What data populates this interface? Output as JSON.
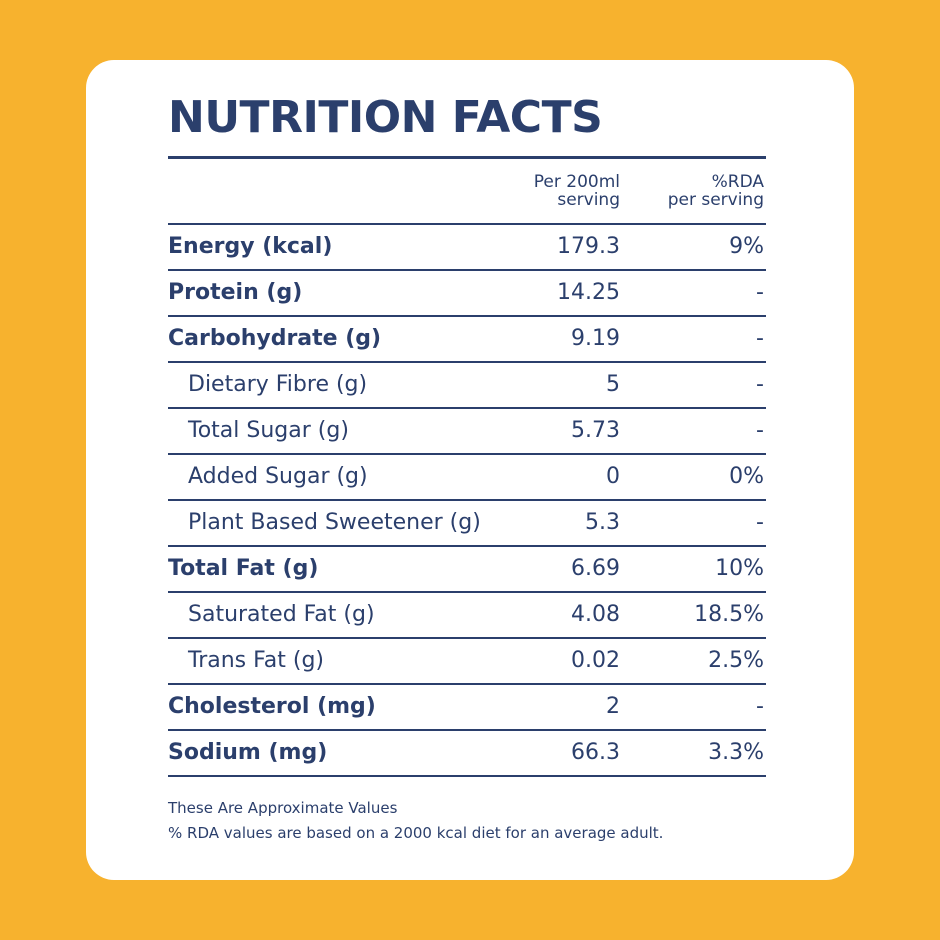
{
  "title": "NUTRITION FACTS",
  "header": {
    "per_line1": "Per 200ml",
    "per_line2": "serving",
    "rda_line1": "%RDA",
    "rda_line2": "per serving"
  },
  "rows": [
    {
      "name": "Energy (kcal)",
      "per": "179.3",
      "rda": "9%",
      "style": "bold"
    },
    {
      "name": "Protein (g)",
      "per": "14.25",
      "rda": "-",
      "style": "bold"
    },
    {
      "name": "Carbohydrate (g)",
      "per": "9.19",
      "rda": "-",
      "style": "bold"
    },
    {
      "name": "Dietary Fibre (g)",
      "per": "5",
      "rda": "-",
      "style": "indent"
    },
    {
      "name": "Total Sugar (g)",
      "per": "5.73",
      "rda": "-",
      "style": "indent"
    },
    {
      "name": "Added Sugar (g)",
      "per": "0",
      "rda": "0%",
      "style": "indent"
    },
    {
      "name": "Plant Based Sweetener (g)",
      "per": "5.3",
      "rda": "-",
      "style": "indent"
    },
    {
      "name": "Total Fat (g)",
      "per": "6.69",
      "rda": "10%",
      "style": "bold"
    },
    {
      "name": "Saturated Fat (g)",
      "per": "4.08",
      "rda": "18.5%",
      "style": "indent"
    },
    {
      "name": "Trans Fat (g)",
      "per": "0.02",
      "rda": "2.5%",
      "style": "indent"
    },
    {
      "name": "Cholesterol (mg)",
      "per": "2",
      "rda": "-",
      "style": "bold"
    },
    {
      "name": "Sodium (mg)",
      "per": "66.3",
      "rda": "3.3%",
      "style": "bold"
    }
  ],
  "footnote": {
    "line1": "These Are Approximate Values",
    "line2": "% RDA values are based on a 2000 kcal diet for an average adult."
  },
  "colors": {
    "background": "#F7B22E",
    "card": "#FFFFFF",
    "text": "#2B3F6C"
  }
}
